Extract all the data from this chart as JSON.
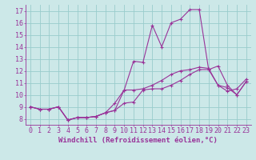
{
  "xlabel": "Windchill (Refroidissement éolien,°C)",
  "ylabel": "",
  "bg_color": "#cce8e8",
  "line_color": "#993399",
  "grid_color": "#99cccc",
  "xlim": [
    -0.5,
    23.5
  ],
  "ylim": [
    7.5,
    17.5
  ],
  "yticks": [
    8,
    9,
    10,
    11,
    12,
    13,
    14,
    15,
    16,
    17
  ],
  "xticks": [
    0,
    1,
    2,
    3,
    4,
    5,
    6,
    7,
    8,
    9,
    10,
    11,
    12,
    13,
    14,
    15,
    16,
    17,
    18,
    19,
    20,
    21,
    22,
    23
  ],
  "line1_x": [
    0,
    1,
    2,
    3,
    4,
    5,
    6,
    7,
    8,
    9,
    10,
    11,
    12,
    13,
    14,
    15,
    16,
    17,
    18,
    19,
    20,
    21,
    22,
    23
  ],
  "line1_y": [
    9.0,
    8.8,
    8.8,
    9.0,
    7.9,
    8.1,
    8.1,
    8.2,
    8.5,
    8.7,
    9.3,
    9.4,
    10.4,
    10.5,
    10.5,
    10.8,
    11.2,
    11.7,
    12.1,
    12.1,
    10.8,
    10.6,
    10.0,
    11.1
  ],
  "line2_x": [
    0,
    1,
    2,
    3,
    4,
    5,
    6,
    7,
    8,
    9,
    10,
    11,
    12,
    13,
    14,
    15,
    16,
    17,
    18,
    19,
    20,
    21,
    22,
    23
  ],
  "line2_y": [
    9.0,
    8.8,
    8.8,
    9.0,
    7.9,
    8.1,
    8.1,
    8.2,
    8.5,
    9.3,
    10.4,
    12.8,
    12.7,
    15.8,
    14.0,
    16.0,
    16.3,
    17.1,
    17.1,
    12.1,
    12.4,
    10.8,
    10.0,
    11.1
  ],
  "line3_x": [
    0,
    1,
    2,
    3,
    4,
    5,
    6,
    7,
    8,
    9,
    10,
    11,
    12,
    13,
    14,
    15,
    16,
    17,
    18,
    19,
    20,
    21,
    22,
    23
  ],
  "line3_y": [
    9.0,
    8.8,
    8.8,
    9.0,
    7.9,
    8.1,
    8.1,
    8.2,
    8.5,
    8.7,
    10.4,
    10.4,
    10.5,
    10.8,
    11.2,
    11.7,
    12.0,
    12.1,
    12.3,
    12.2,
    10.8,
    10.3,
    10.5,
    11.3
  ],
  "xlabel_fontsize": 6.5,
  "tick_fontsize": 6.0
}
